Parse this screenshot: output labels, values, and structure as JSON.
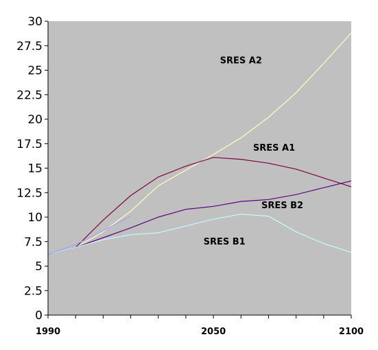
{
  "chart_data": {
    "type": "line",
    "title": "",
    "xlabel": "",
    "ylabel": "",
    "xlim": [
      1990,
      2100
    ],
    "ylim": [
      0,
      30
    ],
    "y_ticks": [
      0,
      2.5,
      5,
      7.5,
      10,
      12.5,
      15,
      17.5,
      20,
      22.5,
      25,
      27.5,
      30
    ],
    "y_tick_labels": [
      "0",
      "2.5",
      "5",
      "7.5",
      "10",
      "12.5",
      "15",
      "17.5",
      "20",
      "22.5",
      "25",
      "27.5",
      "30"
    ],
    "x_tick_labels": [
      {
        "value": 1990,
        "label": "1990"
      },
      {
        "value": 2050,
        "label": "2050"
      },
      {
        "value": 2100,
        "label": "2100"
      }
    ],
    "x_minor_ticks": [
      1990,
      2000,
      2010,
      2020,
      2030,
      2040,
      2050,
      2060,
      2070,
      2080,
      2090,
      2100
    ],
    "grid": false,
    "plot_background": "#c0c0c0",
    "series": [
      {
        "name": "SRES A2",
        "color": "#ffffc0",
        "label_at": [
          2060,
          25.7
        ],
        "points": [
          [
            1990,
            6.2
          ],
          [
            2000,
            6.9
          ],
          [
            2010,
            8.5
          ],
          [
            2020,
            10.6
          ],
          [
            2030,
            13.2
          ],
          [
            2040,
            14.8
          ],
          [
            2050,
            16.4
          ],
          [
            2060,
            18.1
          ],
          [
            2070,
            20.2
          ],
          [
            2080,
            22.7
          ],
          [
            2090,
            25.7
          ],
          [
            2100,
            28.8
          ]
        ]
      },
      {
        "name": "SRES A1",
        "color": "#800040",
        "label_at": [
          2072,
          16.8
        ],
        "points": [
          [
            1990,
            6.2
          ],
          [
            2000,
            6.9
          ],
          [
            2010,
            9.7
          ],
          [
            2020,
            12.2
          ],
          [
            2030,
            14.1
          ],
          [
            2040,
            15.2
          ],
          [
            2050,
            16.1
          ],
          [
            2060,
            15.9
          ],
          [
            2070,
            15.5
          ],
          [
            2080,
            14.9
          ],
          [
            2090,
            14.0
          ],
          [
            2100,
            13.1
          ]
        ]
      },
      {
        "name": "SRES B2",
        "color": "#600080",
        "label_at": [
          2075,
          10.9
        ],
        "points": [
          [
            1990,
            6.2
          ],
          [
            2000,
            6.9
          ],
          [
            2010,
            7.9
          ],
          [
            2020,
            8.9
          ],
          [
            2030,
            10.0
          ],
          [
            2040,
            10.8
          ],
          [
            2050,
            11.1
          ],
          [
            2060,
            11.6
          ],
          [
            2070,
            11.8
          ],
          [
            2080,
            12.3
          ],
          [
            2090,
            13.0
          ],
          [
            2100,
            13.7
          ]
        ]
      },
      {
        "name": "SRES B1",
        "color": "#c0ffff",
        "label_at": [
          2054,
          7.2
        ],
        "points": [
          [
            1990,
            6.2
          ],
          [
            2000,
            6.9
          ],
          [
            2010,
            7.7
          ],
          [
            2020,
            8.2
          ],
          [
            2030,
            8.4
          ],
          [
            2040,
            9.1
          ],
          [
            2050,
            9.8
          ],
          [
            2060,
            10.3
          ],
          [
            2070,
            10.1
          ],
          [
            2080,
            8.5
          ],
          [
            2090,
            7.3
          ],
          [
            2100,
            6.4
          ]
        ]
      },
      {
        "name": "",
        "color": "#a0a0ff",
        "label_at": null,
        "points": [
          [
            1990,
            6.2
          ],
          [
            2000,
            7.2
          ],
          [
            2010,
            8.6
          ],
          [
            2020,
            10.1
          ]
        ]
      }
    ]
  }
}
